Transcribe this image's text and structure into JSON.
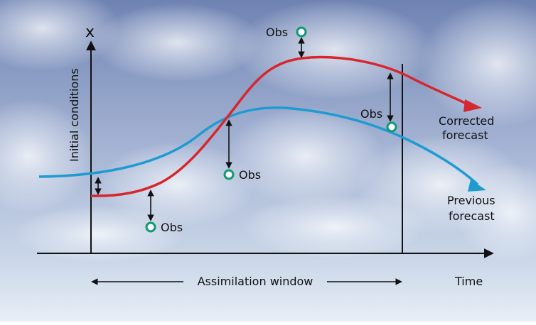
{
  "labels": {
    "y_axis_symbol": "x",
    "y_axis_label": "Initial conditions",
    "x_axis_label": "Time",
    "window_label": "Assimilation window",
    "corrected_line1": "Corrected",
    "corrected_line2": "forecast",
    "previous_line1": "Previous",
    "previous_line2": "forecast"
  },
  "observations": [
    {
      "label": "Obs"
    },
    {
      "label": "Obs"
    },
    {
      "label": "Obs"
    },
    {
      "label": "Obs"
    }
  ],
  "colors": {
    "corrected_forecast": "#d6262e",
    "previous_forecast": "#1f9bd1",
    "observation_marker": "#0f9a73",
    "axis": "#111111",
    "sky_top": "#7f93bd",
    "sky_bottom": "#dfe8f3"
  }
}
